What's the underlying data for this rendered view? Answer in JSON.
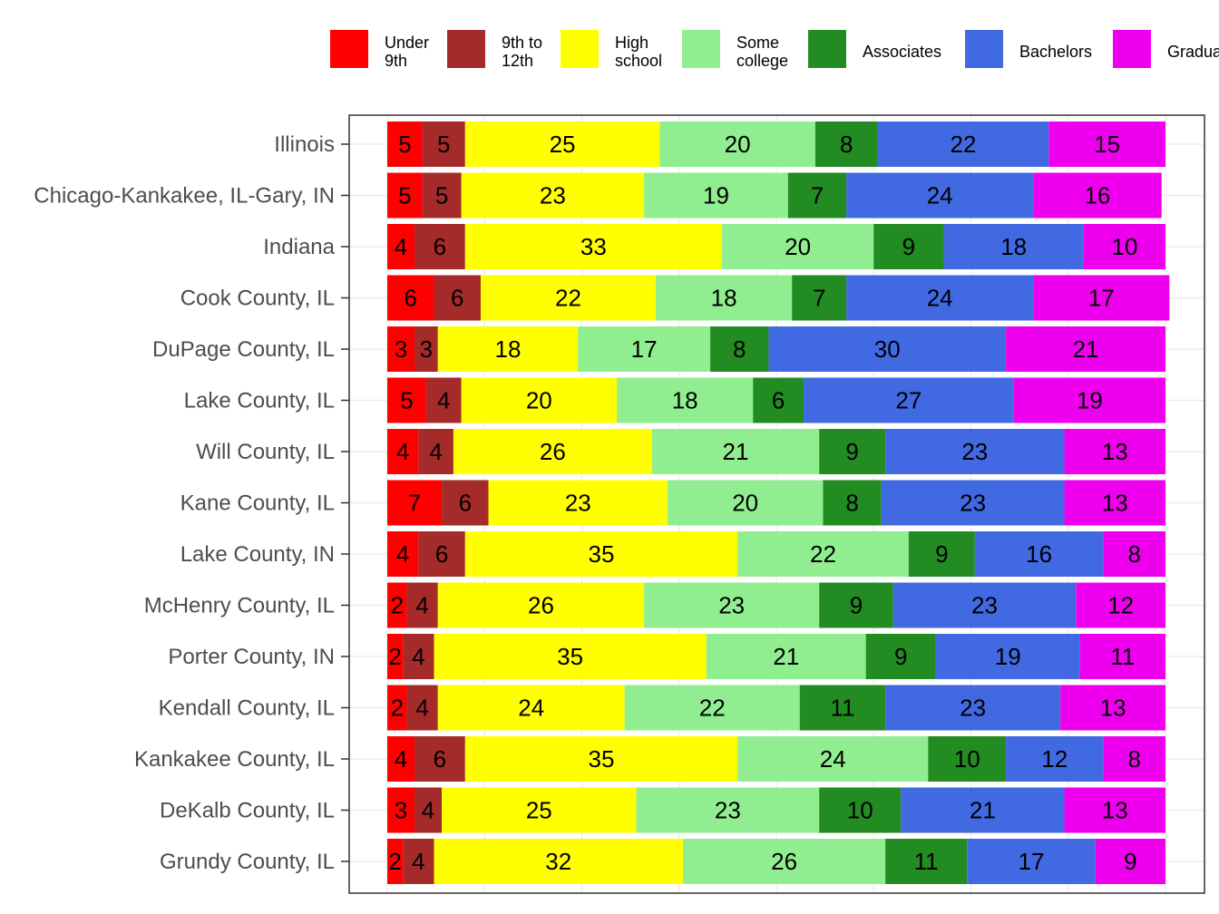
{
  "chart_data": {
    "type": "bar",
    "orientation": "horizontal",
    "stacked": true,
    "title": "",
    "xlabel": "",
    "ylabel": "",
    "xlim": [
      0,
      100
    ],
    "grid": true,
    "legend_position": "top",
    "categories": [
      "Illinois",
      "Chicago-Kankakee, IL-Gary, IN",
      "Indiana",
      "Cook County, IL",
      "DuPage County, IL",
      "Lake County, IL",
      "Will County, IL",
      "Kane County, IL",
      "Lake County, IN",
      "McHenry County, IL",
      "Porter County, IN",
      "Kendall County, IL",
      "Kankakee County, IL",
      "DeKalb County, IL",
      "Grundy County, IL"
    ],
    "series": [
      {
        "name": "Under 9th",
        "legend_lines": [
          "Under",
          "9th"
        ],
        "color": "#ff0000",
        "values": [
          5,
          5,
          4,
          6,
          3,
          5,
          4,
          7,
          4,
          2,
          2,
          2,
          4,
          3,
          2
        ],
        "widths": [
          4.5,
          4.5,
          3.5,
          6.0,
          3.5,
          5.0,
          4.0,
          7.0,
          4.0,
          2.5,
          2.0,
          2.5,
          3.5,
          3.5,
          2.0
        ]
      },
      {
        "name": "9th to 12th",
        "legend_lines": [
          "9th to",
          "12th"
        ],
        "color": "#a52a2a",
        "values": [
          5,
          5,
          6,
          6,
          3,
          4,
          4,
          6,
          6,
          4,
          4,
          4,
          6,
          4,
          4
        ],
        "widths": [
          5.5,
          5.0,
          6.5,
          6.0,
          3.0,
          4.5,
          4.5,
          6.0,
          6.0,
          4.0,
          4.0,
          4.0,
          6.5,
          3.5,
          4.0
        ]
      },
      {
        "name": "High school",
        "legend_lines": [
          "High",
          "school"
        ],
        "color": "#ffff00",
        "values": [
          25,
          23,
          33,
          22,
          18,
          20,
          26,
          23,
          35,
          26,
          35,
          24,
          35,
          25,
          32
        ],
        "widths": [
          25.0,
          23.5,
          33.0,
          22.5,
          18.0,
          20.0,
          25.5,
          23.0,
          35.0,
          26.5,
          35.0,
          24.0,
          35.0,
          25.0,
          32.0
        ]
      },
      {
        "name": "Some college",
        "legend_lines": [
          "Some",
          "college"
        ],
        "color": "#90ee90",
        "values": [
          20,
          19,
          20,
          18,
          17,
          18,
          21,
          20,
          22,
          23,
          21,
          22,
          24,
          23,
          26
        ],
        "widths": [
          20.0,
          18.5,
          19.5,
          17.5,
          17.0,
          17.5,
          21.5,
          20.0,
          22.0,
          22.5,
          20.5,
          22.5,
          24.5,
          23.5,
          26.0
        ]
      },
      {
        "name": "Associates",
        "legend_lines": [
          "Associates"
        ],
        "color": "#228b22",
        "values": [
          8,
          7,
          9,
          7,
          8,
          6,
          9,
          8,
          9,
          9,
          9,
          11,
          10,
          10,
          11
        ],
        "widths": [
          8.0,
          7.5,
          9.0,
          7.0,
          7.5,
          6.5,
          8.5,
          7.5,
          8.5,
          9.5,
          9.0,
          11.0,
          10.0,
          10.5,
          10.5
        ]
      },
      {
        "name": "Bachelors",
        "legend_lines": [
          "Bachelors"
        ],
        "color": "#4169e1",
        "values": [
          22,
          24,
          18,
          24,
          30,
          27,
          23,
          23,
          16,
          23,
          19,
          23,
          12,
          21,
          17
        ],
        "widths": [
          22.0,
          24.0,
          18.0,
          24.0,
          30.5,
          27.0,
          23.0,
          23.5,
          16.5,
          23.5,
          18.5,
          22.5,
          12.5,
          21.0,
          16.5
        ]
      },
      {
        "name": "Graduate",
        "legend_lines": [
          "Graduate"
        ],
        "color": "#ee00ee",
        "values": [
          15,
          16,
          10,
          17,
          21,
          19,
          13,
          13,
          8,
          12,
          11,
          13,
          8,
          13,
          9
        ],
        "widths": [
          15.0,
          16.5,
          10.5,
          17.5,
          20.5,
          19.5,
          13.0,
          13.0,
          8.0,
          11.5,
          11.0,
          13.5,
          8.0,
          13.0,
          9.0
        ]
      }
    ]
  }
}
